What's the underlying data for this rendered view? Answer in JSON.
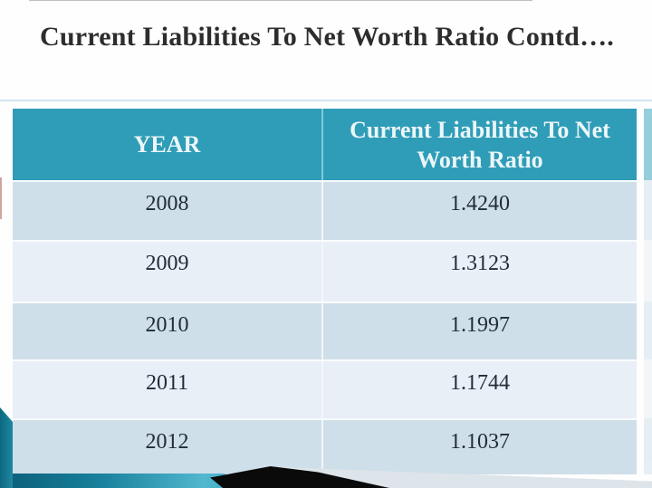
{
  "title": "Current Liabilities To Net Worth Ratio Contd….",
  "table": {
    "headers": {
      "year": "YEAR",
      "ratio": "Current Liabilities To Net Worth Ratio"
    },
    "rows": [
      {
        "year": "2008",
        "ratio": "1.4240"
      },
      {
        "year": "2009",
        "ratio": "1.3123"
      },
      {
        "year": "2010",
        "ratio": "1.1997"
      },
      {
        "year": "2011",
        "ratio": "1.1744"
      },
      {
        "year": "2012",
        "ratio": "1.1037"
      }
    ]
  },
  "colors": {
    "header_teal": "#2f9db8",
    "row_dark": "#cfdfe9",
    "row_light": "#e8eff6",
    "header_text": "#ecf6f8",
    "body_text": "#212c38",
    "title_text": "#2d2d2d",
    "divider_blue": "#cfe5f0",
    "accent_black": "#0a0a0a"
  },
  "chart_data": {
    "type": "table",
    "title": "Current Liabilities To Net Worth Ratio Contd….",
    "columns": [
      "YEAR",
      "Current Liabilities To Net Worth Ratio"
    ],
    "categories": [
      "2008",
      "2009",
      "2010",
      "2011",
      "2012"
    ],
    "values": [
      1.424,
      1.3123,
      1.1997,
      1.1744,
      1.1037
    ]
  }
}
